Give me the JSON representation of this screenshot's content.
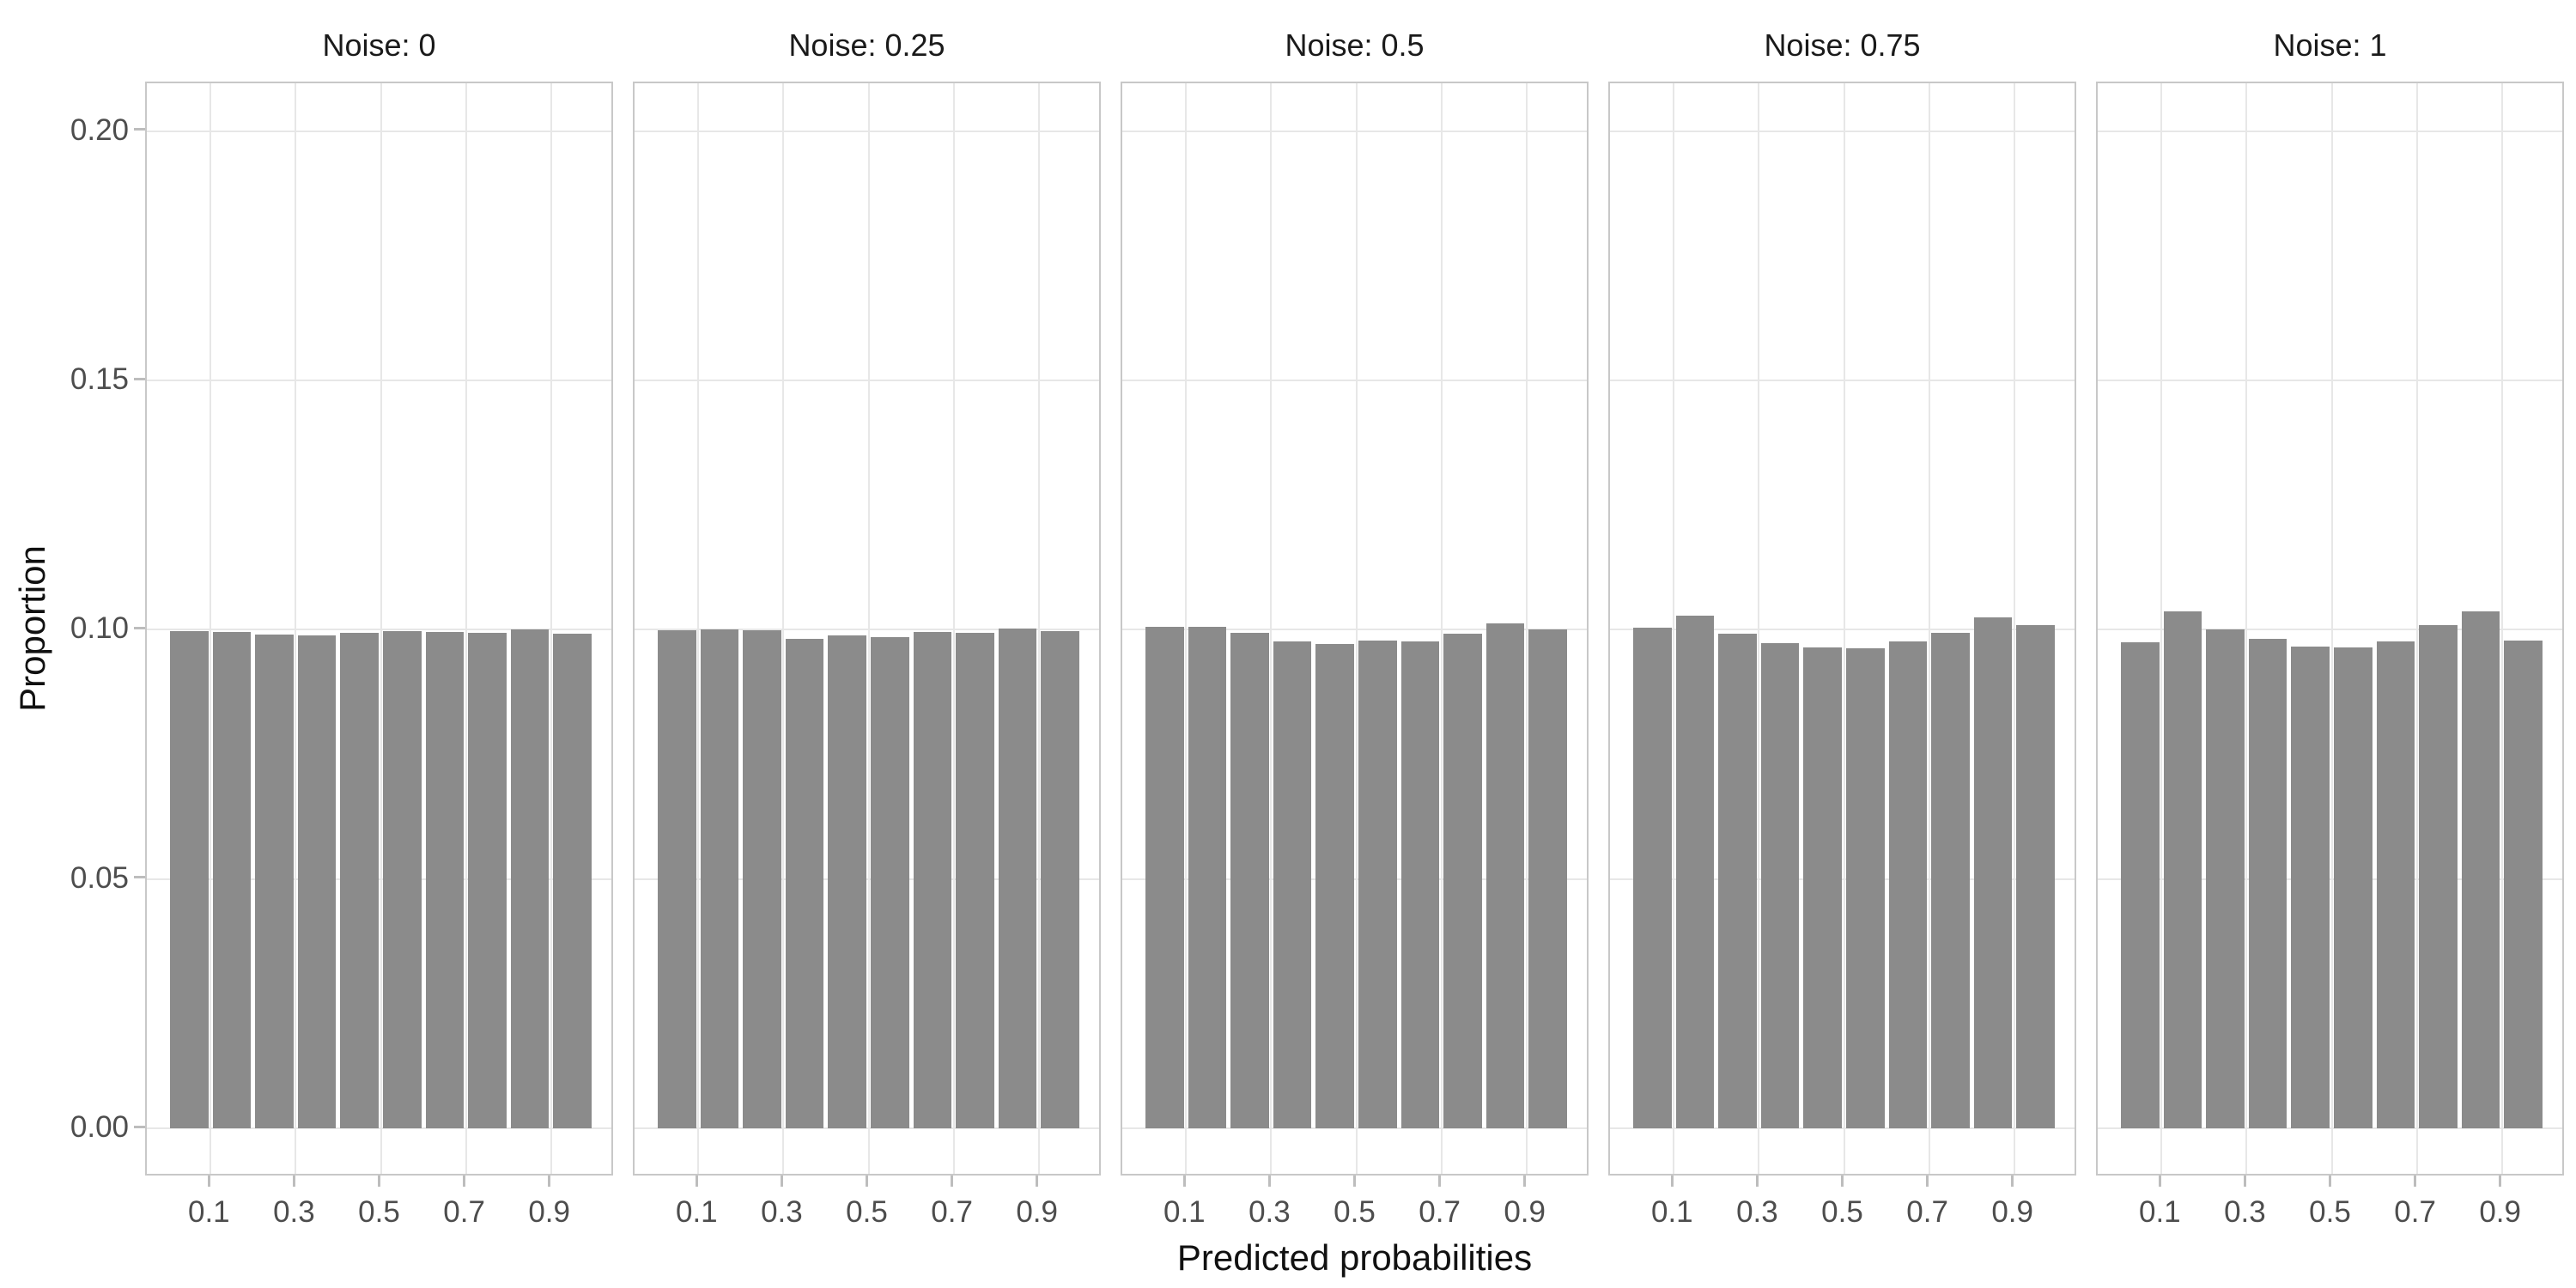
{
  "chart_data": {
    "type": "bar",
    "subtype": "faceted-histogram",
    "title": "",
    "xlabel": "Predicted probabilities",
    "ylabel": "Proportion",
    "facet_variable": "Noise",
    "facets": [
      {
        "label": "Noise: 0",
        "values": [
          0.0997,
          0.0996,
          0.0991,
          0.0988,
          0.0994,
          0.0997,
          0.0995,
          0.0994,
          0.1,
          0.0992
        ]
      },
      {
        "label": "Noise: 0.25",
        "values": [
          0.0999,
          0.1001,
          0.0999,
          0.0981,
          0.0988,
          0.0985,
          0.0995,
          0.0993,
          0.1003,
          0.0997
        ]
      },
      {
        "label": "Noise: 0.5",
        "values": [
          0.1006,
          0.1006,
          0.0994,
          0.0977,
          0.0971,
          0.0979,
          0.0977,
          0.0992,
          0.1013,
          0.1001
        ]
      },
      {
        "label": "Noise: 0.75",
        "values": [
          0.1004,
          0.1028,
          0.0992,
          0.0974,
          0.0964,
          0.0963,
          0.0977,
          0.0994,
          0.1025,
          0.1009
        ]
      },
      {
        "label": "Noise: 1",
        "values": [
          0.0975,
          0.1037,
          0.1,
          0.0982,
          0.0967,
          0.0964,
          0.0977,
          0.101,
          0.1037,
          0.0979
        ]
      }
    ],
    "bin_centers": [
      0.05,
      0.15,
      0.25,
      0.35,
      0.45,
      0.55,
      0.65,
      0.75,
      0.85,
      0.95
    ],
    "bin_width": 0.1,
    "x_tick_labels": [
      "0.1",
      "0.3",
      "0.5",
      "0.7",
      "0.9"
    ],
    "x_tick_values": [
      0.1,
      0.3,
      0.5,
      0.7,
      0.9
    ],
    "y_tick_labels": [
      "0.00",
      "0.05",
      "0.10",
      "0.15",
      "0.20"
    ],
    "y_tick_values": [
      0,
      0.05,
      0.1,
      0.15,
      0.2
    ],
    "xlim": [
      -0.05,
      1.05
    ],
    "ylim": [
      0,
      0.2
    ],
    "grid": "major-only",
    "legend": "none",
    "colors": {
      "bar_fill": "#8b8b8b",
      "gridline": "#e7e7e7",
      "panel_border": "#c8c8c8",
      "tick_mark": "#bdbdbd",
      "tick_label": "#4d4d4d",
      "title_text": "#1a1a1a"
    }
  }
}
